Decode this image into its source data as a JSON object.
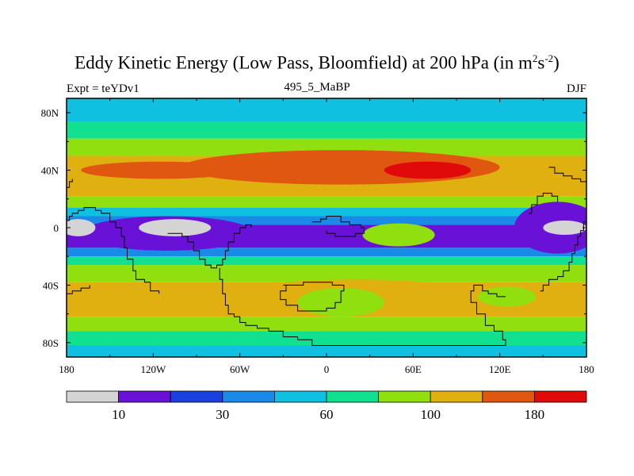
{
  "figure": {
    "title_main": "Eddy Kinetic Energy (Low Pass, Bloomfield) at 200 hPa (in m",
    "title_sup1": "2",
    "title_mid": "s",
    "title_sup2": "-2",
    "title_end": ")",
    "expt_label": "Expt = teYDv1",
    "subtitle": "495_5_MaBP",
    "season": "DJF"
  },
  "chart_data": {
    "type": "heatmap",
    "title": "Eddy Kinetic Energy (Low Pass, Bloomfield) at 200 hPa (in m2s-2)",
    "subtitle": "495_5_MaBP",
    "expt": "Expt = teYDv1",
    "season": "DJF",
    "x_ticks": [
      {
        "value": -180,
        "label": "180"
      },
      {
        "value": -120,
        "label": "120W"
      },
      {
        "value": -60,
        "label": "60W"
      },
      {
        "value": 0,
        "label": "0"
      },
      {
        "value": 60,
        "label": "60E"
      },
      {
        "value": 120,
        "label": "120E"
      },
      {
        "value": 180,
        "label": "180"
      }
    ],
    "y_ticks": [
      {
        "value": 80,
        "label": "80N"
      },
      {
        "value": 40,
        "label": "40N"
      },
      {
        "value": 0,
        "label": "0"
      },
      {
        "value": -40,
        "label": "40S"
      },
      {
        "value": -80,
        "label": "80S"
      }
    ],
    "xlim": [
      -180,
      180
    ],
    "ylim": [
      -90,
      90
    ],
    "colorbar": {
      "colors": [
        "#d4d4d4",
        "#6a11d8",
        "#1a40e0",
        "#1a8ae8",
        "#10c0e0",
        "#10e090",
        "#90e010",
        "#e0b010",
        "#e05810",
        "#e00a0a"
      ],
      "labels": [
        {
          "boundary": 1,
          "text": "10"
        },
        {
          "boundary": 3,
          "text": "30"
        },
        {
          "boundary": 5,
          "text": "60"
        },
        {
          "boundary": 7,
          "text": "100"
        },
        {
          "boundary": 9,
          "text": "180"
        }
      ]
    },
    "bands": [
      {
        "lat_from": 90,
        "lat_to": 74,
        "level": 4
      },
      {
        "lat_from": 74,
        "lat_to": 62,
        "level": 5
      },
      {
        "lat_from": 62,
        "lat_to": 50,
        "level": 6
      },
      {
        "lat_from": 50,
        "lat_to": 22,
        "level": 7
      },
      {
        "lat_from": 22,
        "lat_to": 14,
        "level": 6
      },
      {
        "lat_from": 14,
        "lat_to": 8,
        "level": 4
      },
      {
        "lat_from": 8,
        "lat_to": 2,
        "level": 3
      },
      {
        "lat_from": 2,
        "lat_to": -14,
        "level": 1
      },
      {
        "lat_from": -14,
        "lat_to": -20,
        "level": 3
      },
      {
        "lat_from": -20,
        "lat_to": -26,
        "level": 5
      },
      {
        "lat_from": -26,
        "lat_to": -38,
        "level": 6
      },
      {
        "lat_from": -38,
        "lat_to": -62,
        "level": 7
      },
      {
        "lat_from": -62,
        "lat_to": -72,
        "level": 6
      },
      {
        "lat_from": -72,
        "lat_to": -82,
        "level": 5
      },
      {
        "lat_from": -82,
        "lat_to": -90,
        "level": 4
      }
    ],
    "blobs": [
      {
        "lon": 10,
        "lat": 42,
        "rlon": 110,
        "rlat": 12,
        "level": 8
      },
      {
        "lon": -115,
        "lat": 40,
        "rlon": 55,
        "rlat": 6,
        "level": 8
      },
      {
        "lon": 70,
        "lat": 40,
        "rlon": 30,
        "rlat": 6,
        "level": 9
      },
      {
        "lon": -172,
        "lat": 0,
        "rlon": 12,
        "rlat": 6,
        "level": 0
      },
      {
        "lon": -105,
        "lat": 0,
        "rlon": 25,
        "rlat": 6,
        "level": 0
      },
      {
        "lon": 165,
        "lat": 0,
        "rlon": 15,
        "rlat": 5,
        "level": 0
      },
      {
        "lon": -110,
        "lat": -4,
        "rlon": 60,
        "rlat": 12,
        "level": 1
      },
      {
        "lon": 160,
        "lat": 0,
        "rlon": 30,
        "rlat": 18,
        "level": 1
      },
      {
        "lon": 50,
        "lat": -5,
        "rlon": 25,
        "rlat": 8,
        "level": 6
      },
      {
        "lon": 20,
        "lat": -48,
        "rlon": 90,
        "rlat": 12,
        "level": 7
      },
      {
        "lon": 10,
        "lat": -52,
        "rlon": 30,
        "rlat": 10,
        "level": 6
      },
      {
        "lon": -130,
        "lat": -50,
        "rlon": 35,
        "rlat": 9,
        "level": 7
      },
      {
        "lon": 125,
        "lat": -48,
        "rlon": 20,
        "rlat": 7,
        "level": 6
      }
    ]
  }
}
